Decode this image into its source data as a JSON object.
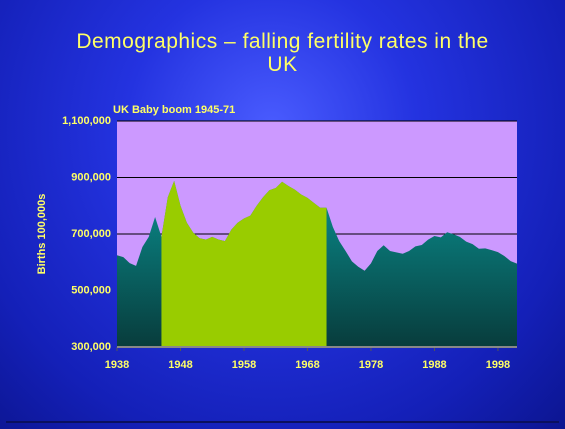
{
  "chart_data": {
    "type": "area",
    "title": "Demographics – falling fertility rates in the UK",
    "annotation": "UK Baby boom  1945-71",
    "y_label": "Births 100,000s",
    "x": [
      1938,
      1939,
      1940,
      1941,
      1942,
      1943,
      1944,
      1945,
      1946,
      1947,
      1948,
      1949,
      1950,
      1951,
      1952,
      1953,
      1954,
      1955,
      1956,
      1957,
      1958,
      1959,
      1960,
      1961,
      1962,
      1963,
      1964,
      1965,
      1966,
      1967,
      1968,
      1969,
      1970,
      1971,
      1972,
      1973,
      1974,
      1975,
      1976,
      1977,
      1978,
      1979,
      1980,
      1981,
      1982,
      1983,
      1984,
      1985,
      1986,
      1987,
      1988,
      1989,
      1990,
      1991,
      1992,
      1993,
      1994,
      1995,
      1996,
      1997,
      1998,
      1999,
      2000,
      2001
    ],
    "values": [
      625000,
      618000,
      597000,
      587000,
      654000,
      690000,
      760000,
      690000,
      830000,
      888000,
      800000,
      740000,
      705000,
      685000,
      680000,
      690000,
      680000,
      675000,
      715000,
      740000,
      755000,
      765000,
      800000,
      830000,
      855000,
      863000,
      885000,
      870000,
      857000,
      840000,
      828000,
      810000,
      793000,
      793000,
      725000,
      675000,
      640000,
      603000,
      584000,
      570000,
      596000,
      640000,
      660000,
      640000,
      635000,
      630000,
      640000,
      656000,
      661000,
      680000,
      693000,
      688000,
      706000,
      699000,
      690000,
      673000,
      664000,
      648000,
      649000,
      643000,
      636000,
      622000,
      604000,
      595000
    ],
    "color": "#0a7f7f",
    "highlight": {
      "from": 1945,
      "to": 1971,
      "color": "#99cc00"
    },
    "xlim": [
      1938,
      2001
    ],
    "xticks": [
      1938,
      1948,
      1958,
      1968,
      1978,
      1988,
      1998
    ],
    "ylim": [
      300000,
      1100000
    ],
    "yticks": [
      {
        "value": 300000,
        "label": "300,000"
      },
      {
        "value": 500000,
        "label": "500,000"
      },
      {
        "value": 700000,
        "label": "700,000"
      },
      {
        "value": 900000,
        "label": "900,000"
      },
      {
        "value": 1100000,
        "label": "1,100,000"
      }
    ],
    "grid": true
  }
}
